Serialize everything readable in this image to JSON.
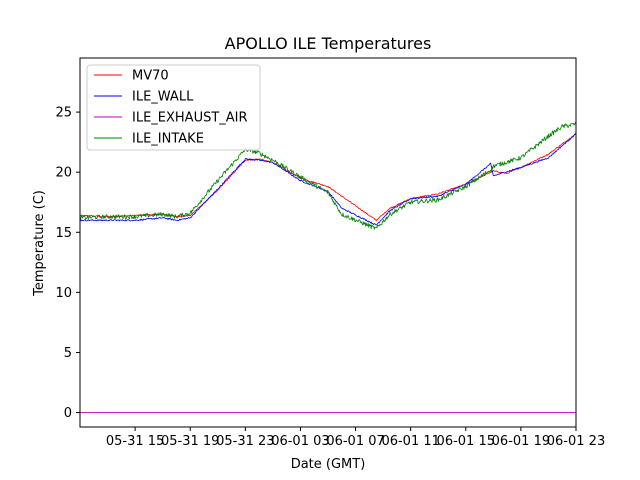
{
  "chart_data": {
    "type": "line",
    "title": "APOLLO ILE Temperatures",
    "xlabel": "Date (GMT)",
    "ylabel": "Temperature (C)",
    "xlim": [
      0,
      36
    ],
    "ylim": [
      -1.2,
      29.5
    ],
    "grid": false,
    "legend_position": "top-left",
    "x_units": "hours since 05-31 11:00 GMT",
    "x_ticks": [
      {
        "x": 4,
        "label": "05-31 15"
      },
      {
        "x": 8,
        "label": "05-31 19"
      },
      {
        "x": 12,
        "label": "05-31 23"
      },
      {
        "x": 16,
        "label": "06-01 03"
      },
      {
        "x": 20,
        "label": "06-01 07"
      },
      {
        "x": 24,
        "label": "06-01 11"
      },
      {
        "x": 28,
        "label": "06-01 15"
      },
      {
        "x": 32,
        "label": "06-01 19"
      },
      {
        "x": 36,
        "label": "06-01 23"
      }
    ],
    "y_ticks": [
      0,
      5,
      10,
      15,
      20,
      25
    ],
    "series": [
      {
        "name": "MV70",
        "color": "#ff0000",
        "x": [
          0,
          2,
          4,
          6,
          7,
          8,
          10,
          12,
          13,
          14,
          16,
          18,
          21.5,
          22.5,
          24,
          26,
          28,
          30,
          31,
          32,
          34,
          36
        ],
        "values": [
          16.4,
          16.3,
          16.4,
          16.5,
          16.3,
          16.4,
          18.5,
          21.0,
          21.1,
          20.8,
          19.5,
          18.8,
          16.0,
          17.0,
          17.8,
          18.2,
          19.0,
          20.1,
          19.9,
          20.4,
          21.5,
          23.2
        ]
      },
      {
        "name": "ILE_WALL",
        "color": "#0000ff",
        "x": [
          0,
          2,
          4,
          6,
          7,
          8,
          10,
          12,
          13,
          14,
          16,
          18,
          19,
          21.5,
          22.5,
          24,
          26,
          28,
          29.8,
          30,
          32,
          34,
          36
        ],
        "values": [
          16.0,
          16.0,
          16.0,
          16.2,
          16.0,
          16.2,
          18.6,
          21.1,
          21.0,
          20.8,
          19.3,
          18.4,
          17.0,
          15.6,
          16.8,
          17.8,
          18.0,
          19.0,
          20.7,
          19.7,
          20.4,
          21.2,
          23.2
        ]
      },
      {
        "name": "ILE_EXHAUST_AIR",
        "color": "#bf00bf",
        "x": [
          0,
          36
        ],
        "values": [
          0,
          0
        ]
      },
      {
        "name": "ILE_INTAKE",
        "color": "#008000",
        "x": [
          0,
          2,
          4,
          6,
          7,
          8,
          10,
          12,
          13,
          14,
          16,
          18,
          19,
          21.5,
          22.5,
          24,
          26,
          28,
          29.8,
          30,
          32,
          34,
          35,
          36
        ],
        "values": [
          16.2,
          16.3,
          16.3,
          16.5,
          16.3,
          16.6,
          19.3,
          21.9,
          21.6,
          21.0,
          19.6,
          18.3,
          16.5,
          15.3,
          16.5,
          17.5,
          17.7,
          18.8,
          20.2,
          20.5,
          21.2,
          23.0,
          23.8,
          24.0
        ]
      }
    ]
  }
}
